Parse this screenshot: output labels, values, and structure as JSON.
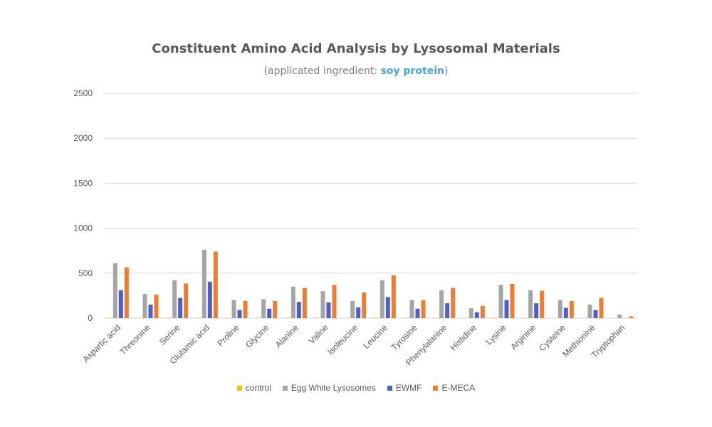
{
  "chart_data": {
    "type": "bar",
    "title": "Constituent Amino Acid Analysis by Lysosomal Materials",
    "subtitle_prefix": "(applicated ingredient: ",
    "subtitle_highlight": "soy protein",
    "subtitle_suffix": ")",
    "xlabel": "",
    "ylabel": "",
    "ylim": [
      0,
      2500
    ],
    "yticks": [
      0,
      500,
      1000,
      1500,
      2000,
      2500
    ],
    "grid": true,
    "legend_position": "bottom",
    "categories": [
      "Aspartic acid",
      "Threonine",
      "Serine",
      "Glutamic acid",
      "Proline",
      "Glycine",
      "Alanine",
      "Valine",
      "Isoleucine",
      "Leucine",
      "Tyrosine",
      "Phenylalanine",
      "Histidine",
      "Lysine",
      "Arginine",
      "Cysteine",
      "Methionine",
      "Tryptophan"
    ],
    "series": [
      {
        "name": "control",
        "color": "#FFC000",
        "values": [
          5,
          3,
          5,
          5,
          3,
          3,
          5,
          5,
          3,
          5,
          3,
          3,
          3,
          5,
          3,
          3,
          3,
          0
        ]
      },
      {
        "name": "Egg White Lysosomes",
        "color": "#A5A5A5",
        "values": [
          610,
          270,
          420,
          760,
          200,
          210,
          350,
          300,
          190,
          420,
          200,
          310,
          110,
          370,
          310,
          200,
          150,
          40
        ]
      },
      {
        "name": "EWMF",
        "color": "#4F5FC8",
        "values": [
          310,
          150,
          225,
          405,
          90,
          105,
          180,
          175,
          120,
          235,
          105,
          165,
          65,
          200,
          165,
          115,
          90,
          0
        ]
      },
      {
        "name": "E-MECA",
        "color": "#ED7D31",
        "values": [
          565,
          260,
          385,
          740,
          190,
          190,
          335,
          370,
          285,
          475,
          200,
          335,
          135,
          380,
          305,
          190,
          225,
          20
        ]
      }
    ]
  }
}
